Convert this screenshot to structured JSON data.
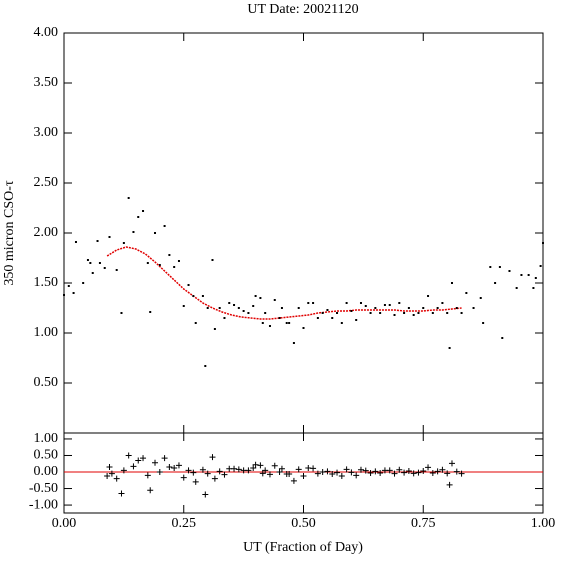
{
  "chart_data": [
    {
      "type": "scatter",
      "title": "UT Date: 20021120",
      "y_label": "350 micron CSO-τ",
      "marker": "dot",
      "color": "#000000",
      "x": [
        0.0,
        0.01,
        0.02,
        0.025,
        0.04,
        0.05,
        0.055,
        0.06,
        0.07,
        0.075,
        0.085,
        0.095,
        0.11,
        0.12,
        0.125,
        0.135,
        0.145,
        0.155,
        0.165,
        0.175,
        0.18,
        0.19,
        0.2,
        0.21,
        0.22,
        0.23,
        0.24,
        0.25,
        0.26,
        0.27,
        0.275,
        0.29,
        0.295,
        0.3,
        0.31,
        0.315,
        0.325,
        0.335,
        0.345,
        0.355,
        0.365,
        0.375,
        0.385,
        0.395,
        0.4,
        0.41,
        0.415,
        0.42,
        0.43,
        0.44,
        0.45,
        0.455,
        0.465,
        0.47,
        0.48,
        0.49,
        0.5,
        0.51,
        0.52,
        0.53,
        0.54,
        0.55,
        0.56,
        0.57,
        0.58,
        0.59,
        0.6,
        0.61,
        0.62,
        0.63,
        0.64,
        0.65,
        0.66,
        0.67,
        0.68,
        0.69,
        0.7,
        0.71,
        0.72,
        0.73,
        0.74,
        0.75,
        0.76,
        0.77,
        0.78,
        0.79,
        0.8,
        0.805,
        0.81,
        0.82,
        0.83,
        0.84,
        0.855,
        0.87,
        0.875,
        0.89,
        0.9,
        0.91,
        0.915,
        0.93,
        0.945,
        0.955,
        0.97,
        0.98,
        0.985,
        0.995,
        1.0
      ],
      "values": [
        1.38,
        1.47,
        1.4,
        1.91,
        1.5,
        1.73,
        1.7,
        1.6,
        1.92,
        1.7,
        1.65,
        1.96,
        1.63,
        1.2,
        1.9,
        2.35,
        2.01,
        2.16,
        2.22,
        1.7,
        1.21,
        2.0,
        1.68,
        2.07,
        1.78,
        1.66,
        1.72,
        1.27,
        1.48,
        1.37,
        1.1,
        1.37,
        0.67,
        1.25,
        1.73,
        1.04,
        1.25,
        1.15,
        1.3,
        1.28,
        1.25,
        1.22,
        1.2,
        1.27,
        1.37,
        1.35,
        1.1,
        1.2,
        1.07,
        1.33,
        1.15,
        1.25,
        1.1,
        1.1,
        0.9,
        1.25,
        1.05,
        1.3,
        1.3,
        1.15,
        1.2,
        1.23,
        1.15,
        1.2,
        1.1,
        1.3,
        1.22,
        1.13,
        1.3,
        1.27,
        1.2,
        1.25,
        1.2,
        1.28,
        1.28,
        1.18,
        1.3,
        1.2,
        1.25,
        1.18,
        1.2,
        1.25,
        1.37,
        1.2,
        1.25,
        1.3,
        1.2,
        0.85,
        1.5,
        1.25,
        1.2,
        1.4,
        1.25,
        1.35,
        1.1,
        1.66,
        1.5,
        1.66,
        0.95,
        1.62,
        1.45,
        1.58,
        1.58,
        1.45,
        1.55,
        1.67,
        1.9
      ],
      "fit_x": [
        0.09,
        0.11,
        0.13,
        0.15,
        0.17,
        0.19,
        0.21,
        0.23,
        0.25,
        0.27,
        0.29,
        0.31,
        0.33,
        0.35,
        0.37,
        0.39,
        0.41,
        0.43,
        0.45,
        0.47,
        0.49,
        0.51,
        0.53,
        0.55,
        0.57,
        0.59,
        0.61,
        0.63,
        0.65,
        0.67,
        0.69,
        0.71,
        0.73,
        0.75,
        0.77,
        0.79,
        0.81,
        0.83
      ],
      "fit_values": [
        1.77,
        1.83,
        1.86,
        1.84,
        1.79,
        1.71,
        1.62,
        1.53,
        1.44,
        1.37,
        1.3,
        1.25,
        1.21,
        1.18,
        1.16,
        1.15,
        1.14,
        1.14,
        1.15,
        1.16,
        1.17,
        1.18,
        1.2,
        1.21,
        1.22,
        1.22,
        1.23,
        1.23,
        1.23,
        1.23,
        1.23,
        1.22,
        1.22,
        1.22,
        1.23,
        1.23,
        1.24,
        1.25
      ],
      "fit_color": "#e00000",
      "xlim": [
        0,
        1
      ],
      "ylim": [
        0,
        4
      ],
      "yticks": [
        {
          "value": 0.5,
          "label": "0.50"
        },
        {
          "value": 1,
          "label": "1.00"
        },
        {
          "value": 1.5,
          "label": "1.50"
        },
        {
          "value": 2,
          "label": "2.00"
        },
        {
          "value": 2.5,
          "label": "2.50"
        },
        {
          "value": 3,
          "label": "3.00"
        },
        {
          "value": 3.5,
          "label": "3.50"
        },
        {
          "value": 4,
          "label": "4.00"
        }
      ]
    },
    {
      "type": "scatter",
      "x_label": "UT (Fraction of Day)",
      "marker": "plus",
      "color": "#000000",
      "x": [
        0.09,
        0.095,
        0.1,
        0.11,
        0.12,
        0.125,
        0.135,
        0.145,
        0.155,
        0.165,
        0.175,
        0.18,
        0.19,
        0.2,
        0.21,
        0.22,
        0.23,
        0.24,
        0.25,
        0.26,
        0.27,
        0.275,
        0.29,
        0.295,
        0.3,
        0.31,
        0.315,
        0.325,
        0.335,
        0.345,
        0.355,
        0.365,
        0.375,
        0.385,
        0.395,
        0.4,
        0.41,
        0.415,
        0.42,
        0.43,
        0.44,
        0.45,
        0.455,
        0.465,
        0.47,
        0.48,
        0.49,
        0.5,
        0.51,
        0.52,
        0.53,
        0.54,
        0.55,
        0.56,
        0.57,
        0.58,
        0.59,
        0.6,
        0.61,
        0.62,
        0.63,
        0.64,
        0.65,
        0.66,
        0.67,
        0.68,
        0.69,
        0.7,
        0.71,
        0.72,
        0.73,
        0.74,
        0.75,
        0.76,
        0.77,
        0.78,
        0.79,
        0.8,
        0.805,
        0.81,
        0.82,
        0.83
      ],
      "values": [
        -0.12,
        0.15,
        -0.05,
        -0.2,
        -0.65,
        0.05,
        0.5,
        0.17,
        0.35,
        0.42,
        -0.1,
        -0.55,
        0.28,
        0.0,
        0.42,
        0.15,
        0.12,
        0.2,
        -0.17,
        0.05,
        -0.02,
        -0.3,
        0.07,
        -0.68,
        -0.05,
        0.45,
        -0.2,
        0.02,
        -0.08,
        0.1,
        0.1,
        0.08,
        0.05,
        0.05,
        0.12,
        0.22,
        0.2,
        -0.04,
        0.05,
        -0.07,
        0.19,
        0.0,
        0.1,
        -0.06,
        -0.06,
        -0.27,
        0.08,
        -0.12,
        0.12,
        0.11,
        -0.05,
        0.0,
        0.02,
        -0.06,
        -0.02,
        -0.12,
        0.08,
        -0.01,
        -0.1,
        0.07,
        0.04,
        -0.03,
        0.02,
        -0.03,
        0.05,
        0.05,
        -0.05,
        0.07,
        -0.02,
        0.03,
        -0.04,
        -0.02,
        0.03,
        0.14,
        -0.03,
        0.02,
        0.07,
        -0.04,
        -0.39,
        0.26,
        0.01,
        -0.05
      ],
      "hline": 0,
      "hline_color": "#e00000",
      "xlim": [
        0,
        1
      ],
      "ylim": [
        -1.24,
        1.18
      ],
      "xticks": [
        {
          "value": 0,
          "label": "0.00"
        },
        {
          "value": 0.25,
          "label": "0.25"
        },
        {
          "value": 0.5,
          "label": "0.50"
        },
        {
          "value": 0.75,
          "label": "0.75"
        },
        {
          "value": 1,
          "label": "1.00"
        }
      ],
      "yticks": [
        {
          "value": -1,
          "label": "-1.00"
        },
        {
          "value": -0.5,
          "label": "-0.50"
        },
        {
          "value": 0,
          "label": "0.00"
        },
        {
          "value": 0.5,
          "label": "0.50"
        },
        {
          "value": 1,
          "label": "1.00"
        }
      ]
    }
  ]
}
